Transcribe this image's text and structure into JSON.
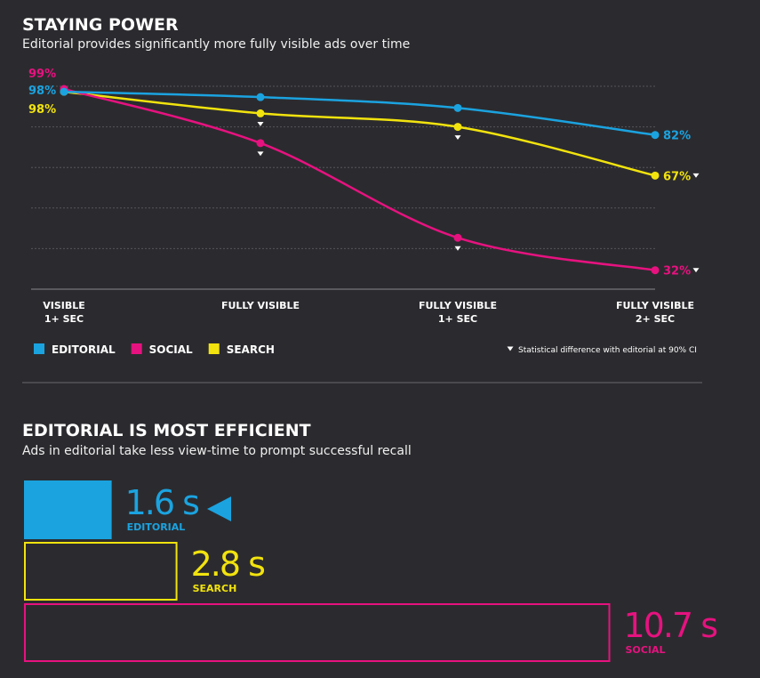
{
  "chart_data": [
    {
      "type": "line",
      "title": "STAYING POWER",
      "subtitle": "Editorial provides significantly more fully visible ads over time",
      "categories": [
        "VISIBLE\n1+ SEC",
        "FULLY VISIBLE",
        "FULLY VISIBLE\n1+ SEC",
        "FULLY VISIBLE\n2+ SEC"
      ],
      "ylim": [
        25,
        100
      ],
      "yticks": [
        25,
        40,
        55,
        70,
        85,
        100
      ],
      "grid": true,
      "series": [
        {
          "name": "EDITORIAL",
          "color": "#1ba3e0",
          "values": [
            98,
            96,
            92,
            82
          ],
          "value_labels": [
            "98%",
            null,
            null,
            "82%"
          ],
          "significant": [
            false,
            false,
            false,
            false
          ]
        },
        {
          "name": "SOCIAL",
          "color": "#e6127f",
          "values": [
            99,
            79,
            44,
            32
          ],
          "value_labels": [
            "99%",
            null,
            null,
            "32%"
          ],
          "significant": [
            false,
            true,
            true,
            true
          ]
        },
        {
          "name": "SEARCH",
          "color": "#f2e30e",
          "values": [
            98,
            90,
            85,
            67
          ],
          "value_labels": [
            "98%",
            null,
            null,
            "67%"
          ],
          "significant": [
            false,
            true,
            true,
            true
          ]
        }
      ],
      "annotation": "Statistical difference with editorial at 90% CI"
    },
    {
      "type": "hbar",
      "title": "EDITORIAL IS MOST EFFICIENT",
      "subtitle": "Ads in editorial take less view-time to prompt successful recall",
      "categories": [
        "EDITORIAL",
        "SEARCH",
        "SOCIAL"
      ],
      "values": [
        1.6,
        2.8,
        10.7
      ],
      "value_labels": [
        "1.6 s",
        "2.8 s",
        "10.7 s"
      ],
      "colors": [
        "#1ba3e0",
        "#f2e30e",
        "#e6127f"
      ],
      "styles": [
        "filled",
        "outline",
        "outline"
      ],
      "xlim": [
        0,
        11
      ]
    }
  ]
}
